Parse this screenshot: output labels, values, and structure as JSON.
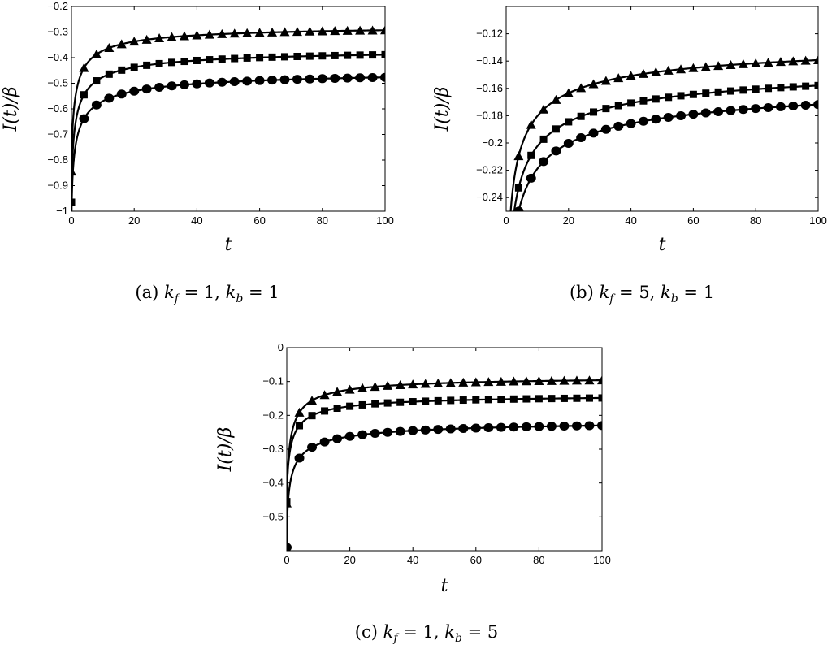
{
  "chart_data": [
    {
      "type": "line",
      "caption": "(a)  k_f = 1, k_b = 1",
      "caption_parts": {
        "label": "(a)",
        "math": "k",
        "s1": "f",
        "eq1": " = 1, ",
        "math2": "k",
        "s2": "b",
        "eq2": " = 1"
      },
      "xlabel": "t",
      "ylabel": "I(t)/β",
      "xlim": [
        0,
        100
      ],
      "ylim": [
        -1,
        -0.2
      ],
      "xticks": [
        0,
        20,
        40,
        60,
        80,
        100
      ],
      "yticks": [
        -1,
        -0.9,
        -0.8,
        -0.7,
        -0.6,
        -0.5,
        -0.4,
        -0.3,
        -0.2
      ],
      "ytick_labels": [
        "−1",
        "−0.9",
        "−0.8",
        "−0.7",
        "−0.6",
        "−0.5",
        "−0.4",
        "−0.3",
        "−0.2"
      ],
      "series": [
        {
          "marker": "triangle",
          "curve": {
            "a": -0.845,
            "b": -0.27,
            "tau": 1.2,
            "p": 0.72
          }
        },
        {
          "marker": "square",
          "curve": {
            "a": -0.965,
            "b": -0.36,
            "tau": 1.2,
            "p": 0.68
          }
        },
        {
          "marker": "circle",
          "curve": {
            "a": -1.08,
            "b": -0.44,
            "tau": 1.1,
            "p": 0.62
          }
        }
      ]
    },
    {
      "type": "line",
      "caption": "(b)  k_f = 5, k_b = 1",
      "caption_parts": {
        "label": "(b)",
        "math": "k",
        "s1": "f",
        "eq1": " = 5, ",
        "math2": "k",
        "s2": "b",
        "eq2": " = 1"
      },
      "xlabel": "t",
      "ylabel": "I(t)/β",
      "xlim": [
        0,
        100
      ],
      "ylim": [
        -0.25,
        -0.1
      ],
      "xticks": [
        0,
        20,
        40,
        60,
        80,
        100
      ],
      "yticks": [
        -0.24,
        -0.22,
        -0.2,
        -0.18,
        -0.16,
        -0.14,
        -0.12
      ],
      "ytick_labels": [
        "−0.24",
        "−0.22",
        "−0.2",
        "−0.18",
        "−0.16",
        "−0.14",
        "−0.12"
      ],
      "series": [
        {
          "marker": "triangle",
          "curve": {
            "a": -0.42,
            "b": -0.121,
            "tau": 0.9,
            "p": 0.58
          }
        },
        {
          "marker": "square",
          "curve": {
            "a": -0.46,
            "b": -0.136,
            "tau": 0.85,
            "p": 0.55
          }
        },
        {
          "marker": "circle",
          "curve": {
            "a": -0.49,
            "b": -0.146,
            "tau": 0.8,
            "p": 0.52
          }
        }
      ]
    },
    {
      "type": "line",
      "caption": "(c)  k_f = 1, k_b = 5",
      "caption_parts": {
        "label": "(c)",
        "math": "k",
        "s1": "f",
        "eq1": " = 1, ",
        "math2": "k",
        "s2": "b",
        "eq2": " = 5"
      },
      "xlabel": "t",
      "ylabel": "I(t)/β",
      "xlim": [
        0,
        100
      ],
      "ylim": [
        -0.6,
        0
      ],
      "xticks": [
        0,
        20,
        40,
        60,
        80,
        100
      ],
      "yticks": [
        -0.5,
        -0.4,
        -0.3,
        -0.2,
        -0.1,
        0
      ],
      "ytick_labels": [
        "−0.5",
        "−0.4",
        "−0.3",
        "−0.2",
        "−0.1",
        "0"
      ],
      "series": [
        {
          "marker": "triangle",
          "curve": {
            "a": -0.46,
            "b": -0.083,
            "tau": 1.2,
            "p": 0.75
          }
        },
        {
          "marker": "square",
          "curve": {
            "a": -0.455,
            "b": -0.136,
            "tau": 1.2,
            "p": 0.72
          }
        },
        {
          "marker": "circle",
          "curve": {
            "a": -0.59,
            "b": -0.208,
            "tau": 1.1,
            "p": 0.62
          }
        }
      ]
    }
  ]
}
